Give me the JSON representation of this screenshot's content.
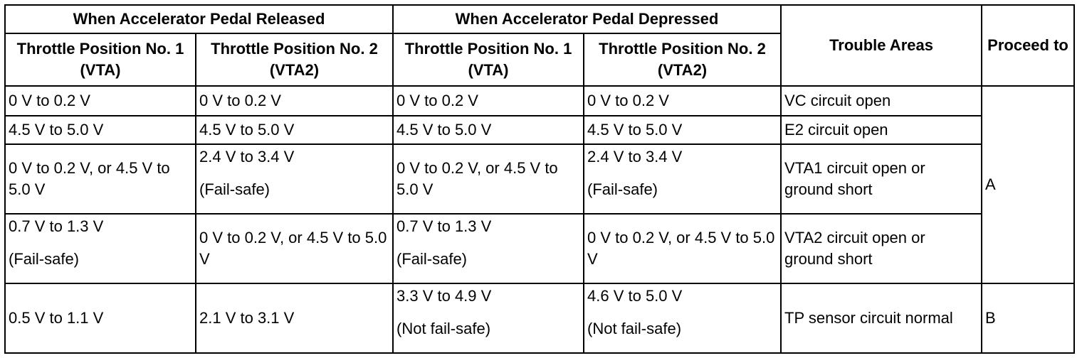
{
  "headers": {
    "released": "When Accelerator Pedal Released",
    "depressed": "When Accelerator Pedal Depressed",
    "trouble_areas": "Trouble Areas",
    "proceed_to": "Proceed to",
    "tp1": "Throttle Position No. 1 (VTA)",
    "tp2": "Throttle Position No. 2 (VTA2)"
  },
  "rows": [
    {
      "r1": "0 V to 0.2 V",
      "r2": "0 V to 0.2 V",
      "d1": "0 V to 0.2 V",
      "d2": "0 V to 0.2 V",
      "area": "VC circuit open"
    },
    {
      "r1": "4.5 V to 5.0 V",
      "r2": "4.5 V to 5.0 V",
      "d1": "4.5 V to 5.0 V",
      "d2": "4.5 V to 5.0 V",
      "area": "E2 circuit open"
    },
    {
      "r1": "0 V to 0.2 V, or 4.5 V to 5.0 V",
      "r2": "2.4 V to 3.4 V",
      "r2_note": "(Fail-safe)",
      "d1": "0 V to 0.2 V, or 4.5 V to 5.0 V",
      "d2": "2.4 V to 3.4 V",
      "d2_note": "(Fail-safe)",
      "area": "VTA1 circuit open or ground short"
    },
    {
      "r1": "0.7 V to 1.3 V",
      "r1_note": "(Fail-safe)",
      "r2": "0 V to 0.2 V, or 4.5 V to 5.0 V",
      "d1": "0.7 V to 1.3 V",
      "d1_note": "(Fail-safe)",
      "d2": "0 V to 0.2 V, or 4.5 V to 5.0 V",
      "area": "VTA2 circuit open or ground short"
    },
    {
      "r1": "0.5 V to 1.1 V",
      "r2": "2.1 V to 3.1 V",
      "d1": "3.3 V to 4.9 V",
      "d1_note": "(Not fail-safe)",
      "d2": "4.6 V to 5.0 V",
      "d2_note": "(Not fail-safe)",
      "area": "TP sensor circuit normal"
    }
  ],
  "proceed": {
    "a": "A",
    "b": "B"
  }
}
